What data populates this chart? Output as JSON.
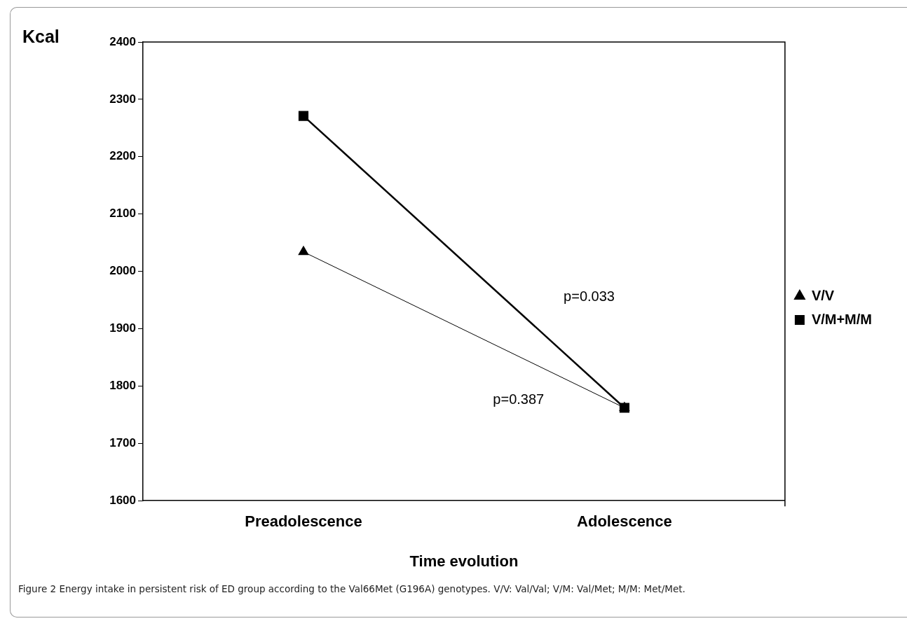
{
  "chart_data": {
    "type": "line",
    "ylabel": "Kcal",
    "xlabel": "Time evolution",
    "categories": [
      "Preadolescence",
      "Adolescence"
    ],
    "series": [
      {
        "name": "V/V",
        "color": "#000000",
        "values": [
          2034,
          1762
        ],
        "marker": "triangle"
      },
      {
        "name": "V/M+M/M",
        "color": "#000000",
        "values": [
          2271,
          1762
        ],
        "marker": "square"
      }
    ],
    "ylim": [
      1600,
      2400
    ],
    "yticks": [
      1600,
      1700,
      1800,
      1900,
      2000,
      2100,
      2200,
      2300,
      2400
    ],
    "grid": false,
    "legend": "right",
    "line_style": "solid",
    "annotations": [
      "p=0.033",
      "p=0.387",
      "Figure 2 Energy intake in persistent risk of ED group according to the Val66Met (G196A) genotypes. V/V: Val/Val; V/M: Val/Met; M/M: Met/Met."
    ]
  }
}
